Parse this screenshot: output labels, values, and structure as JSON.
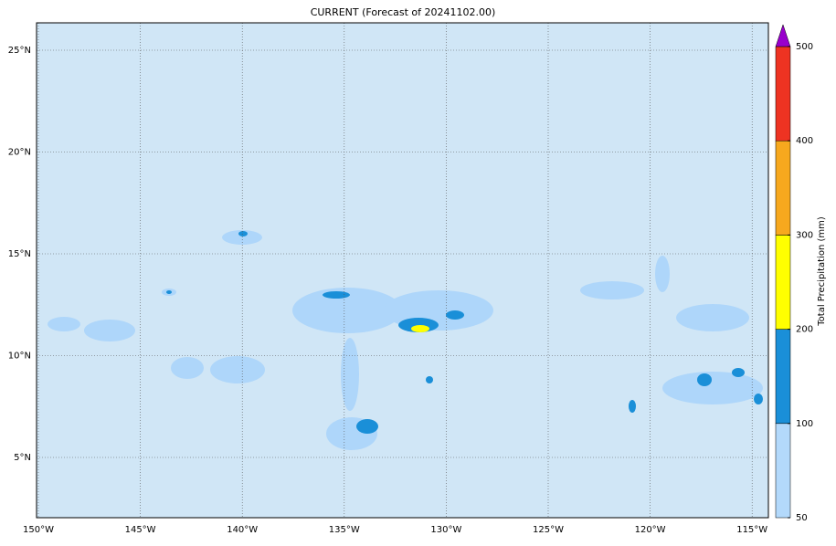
{
  "title": "CURRENT (Forecast of 20241102.00)",
  "lat_labels": [
    "25°N",
    "20°N",
    "15°N",
    "10°N",
    "5°N"
  ],
  "lon_labels": [
    "150°W",
    "145°W",
    "140°W",
    "135°W",
    "130°W",
    "125°W",
    "120°W",
    "115°W"
  ],
  "colorbar": {
    "label": "Total Precipitation (mm)",
    "ticks": [
      50,
      100,
      200,
      300,
      400,
      500
    ],
    "colors": [
      "#b3d9fb",
      "#1a8fd8",
      "#ffff00",
      "#f7a81e",
      "#ee3322"
    ],
    "extend_color": "#9900cc"
  }
}
